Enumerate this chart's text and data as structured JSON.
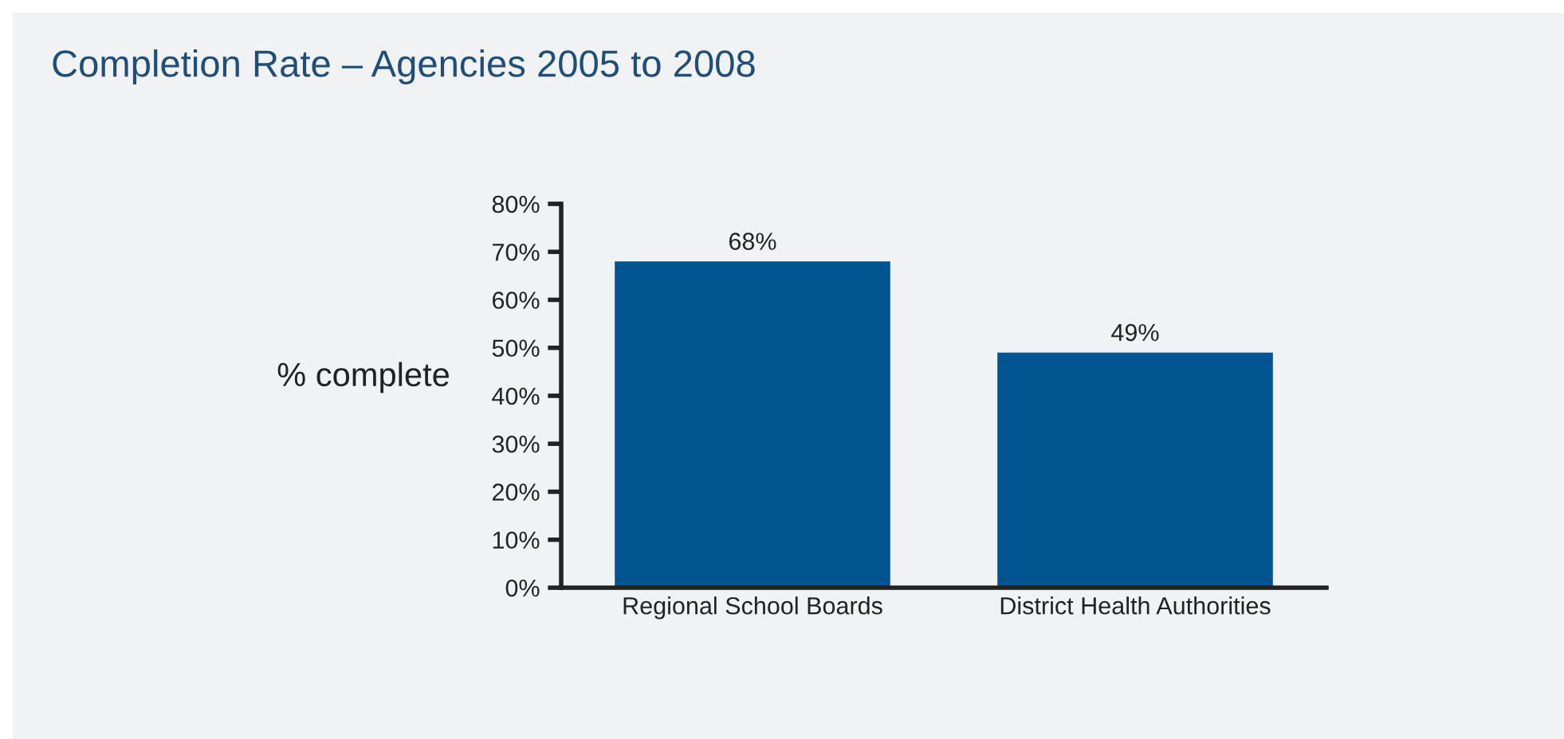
{
  "chart_data": {
    "type": "bar",
    "title": "Completion Rate – Agencies 2005 to 2008",
    "ylabel": "% complete",
    "categories": [
      "Regional School Boards",
      "District Health Authorities"
    ],
    "values": [
      68,
      49
    ],
    "value_labels": [
      "68%",
      "49%"
    ],
    "color": "#00548f",
    "ylim": [
      0,
      80
    ],
    "yticks": [
      {
        "value": 0,
        "label": "0%"
      },
      {
        "value": 10,
        "label": "10%"
      },
      {
        "value": 20,
        "label": "20%"
      },
      {
        "value": 30,
        "label": "30%"
      },
      {
        "value": 40,
        "label": "40%"
      },
      {
        "value": 50,
        "label": "50%"
      },
      {
        "value": 60,
        "label": "60%"
      },
      {
        "value": 70,
        "label": "70%"
      },
      {
        "value": 80,
        "label": "80%"
      }
    ],
    "grid": false,
    "legend": false
  }
}
